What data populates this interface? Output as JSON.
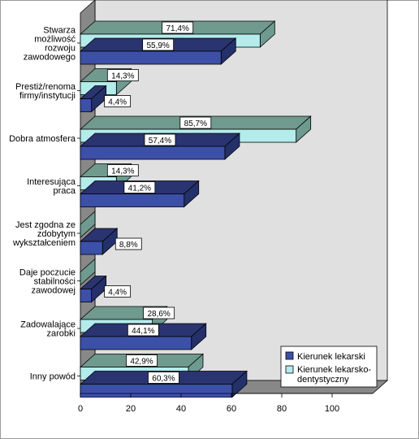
{
  "chart_data": {
    "type": "bar",
    "orientation": "horizontal",
    "style": "3d",
    "categories": [
      [
        "Stwarza",
        "możliwość",
        "rozwoju",
        "zawodowego"
      ],
      [
        "Prestiż/renoma",
        "firmy/instytucji"
      ],
      [
        "Dobra atmosfera"
      ],
      [
        "Interesująca",
        "praca"
      ],
      [
        "Jest zgodna ze",
        "zdobytym",
        "wykształceniem"
      ],
      [
        "Daje poczucie",
        "stabilności",
        "zawodowej"
      ],
      [
        "Zadowalające",
        "zarobki"
      ],
      [
        "Inny powód"
      ]
    ],
    "series": [
      {
        "name": "Kierunek lekarski",
        "color": "#3c50a8",
        "values": [
          55.9,
          4.4,
          57.4,
          41.2,
          8.8,
          4.4,
          44.1,
          60.3
        ],
        "labels": [
          "55,9%",
          "4,4%",
          "57,4%",
          "41,2%",
          "8,8%",
          "4,4%",
          "44,1%",
          "60,3%"
        ]
      },
      {
        "name": "Kierunek lekarsko-dentystyczny",
        "legend_lines": [
          "Kierunek lekarsko-",
          "dentystyczny"
        ],
        "color": "#b4ecec",
        "values": [
          71.4,
          14.3,
          85.7,
          14.3,
          0,
          0,
          28.6,
          42.9
        ],
        "labels": [
          "71,4%",
          "14,3%",
          "85,7%",
          "14,3%",
          "",
          "",
          "28,6%",
          "42,9%"
        ]
      }
    ],
    "xlim": [
      0,
      100
    ],
    "xticks": [
      0,
      20,
      40,
      60,
      80,
      100
    ],
    "tick_labels": [
      "0",
      "20",
      "40",
      "60",
      "80",
      "100"
    ],
    "grid": false,
    "legend_position": "bottom-right",
    "colors": {
      "wall": "#e0e0e0",
      "floor": "#888888",
      "back_top": "#6f9a8d",
      "series1_top": "#2a3470",
      "series1_side": "#24306a",
      "series2_side": "#6e9a90"
    }
  }
}
